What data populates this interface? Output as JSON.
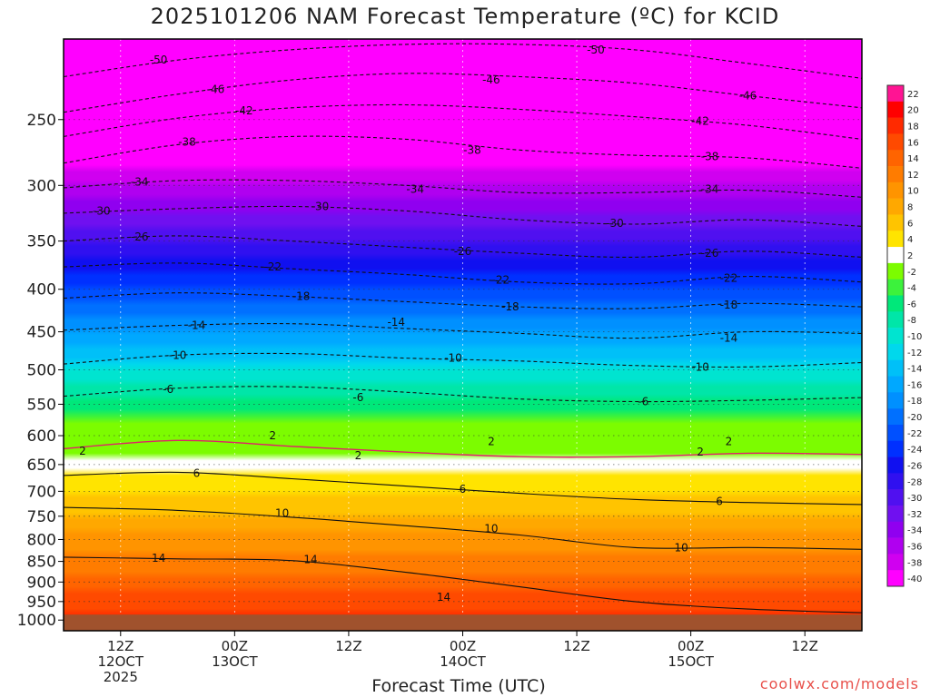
{
  "chart_data": {
    "type": "heatmap",
    "title": "2025101206 NAM Forecast Temperature (ºC) for KCID",
    "xlabel": "Forecast Time (UTC)",
    "ylabel": "",
    "credit": "coolwx.com/models",
    "x_ticks": [
      {
        "hours": 6,
        "line1": "12Z",
        "line2": "12OCT",
        "line3": "2025"
      },
      {
        "hours": 18,
        "line1": "00Z",
        "line2": "13OCT",
        "line3": ""
      },
      {
        "hours": 30,
        "line1": "12Z",
        "line2": "",
        "line3": ""
      },
      {
        "hours": 42,
        "line1": "00Z",
        "line2": "14OCT",
        "line3": ""
      },
      {
        "hours": 54,
        "line1": "12Z",
        "line2": "",
        "line3": ""
      },
      {
        "hours": 66,
        "line1": "00Z",
        "line2": "15OCT",
        "line3": ""
      },
      {
        "hours": 78,
        "line1": "12Z",
        "line2": "",
        "line3": ""
      }
    ],
    "xlim_hours": [
      0,
      84
    ],
    "y_ticks": [
      250,
      300,
      350,
      400,
      450,
      500,
      550,
      600,
      650,
      700,
      750,
      800,
      850,
      900,
      950,
      1000
    ],
    "y_tick_labels": [
      "250",
      "300",
      "350",
      "400",
      "450",
      "500",
      "550",
      "600",
      "650",
      "700",
      "750",
      "800",
      "850",
      "900",
      "950",
      "1000"
    ],
    "ylim_hpa": [
      200,
      1030
    ],
    "y_scale": "log",
    "y_inverted": true,
    "surface_pressure_hpa": 985,
    "surface_color": "#a0522d",
    "grid": true,
    "colorbar": {
      "placement": "right",
      "levels": [
        22,
        20,
        18,
        16,
        14,
        12,
        10,
        8,
        6,
        4,
        2,
        -2,
        -4,
        -6,
        -8,
        -10,
        -12,
        -14,
        -16,
        -18,
        -20,
        -22,
        -24,
        -26,
        -28,
        -30,
        -32,
        -34,
        -36,
        -38,
        -40
      ],
      "labels": [
        "22",
        "20",
        "18",
        "16",
        "14",
        "12",
        "10",
        "8",
        "6",
        "4",
        "2",
        "-2",
        "-4",
        "-6",
        "-8",
        "-10",
        "-12",
        "-14",
        "-16",
        "-18",
        "-20",
        "-22",
        "-24",
        "-26",
        "-28",
        "-30",
        "-32",
        "-34",
        "-36",
        "-38",
        "-40"
      ],
      "colors": [
        "#ff1493",
        "#ff0000",
        "#ff2a00",
        "#ff4a00",
        "#ff6400",
        "#ff7c00",
        "#ff9400",
        "#ffa800",
        "#ffc400",
        "#ffe400",
        "#ffffff",
        "#7cfc00",
        "#3cf23c",
        "#00e87a",
        "#00e6a8",
        "#00e4d0",
        "#00d8ec",
        "#00c0f8",
        "#00a8ff",
        "#0090ff",
        "#0070ff",
        "#0050ff",
        "#0030ff",
        "#1010f0",
        "#3010f0",
        "#5010f0",
        "#7010f0",
        "#9000f0",
        "#b000f0",
        "#d000f0",
        "#ff00ff"
      ]
    },
    "profile_levels_hpa": [
      200,
      250,
      300,
      350,
      400,
      450,
      500,
      550,
      600,
      650,
      700,
      750,
      800,
      850,
      900,
      950,
      1000
    ],
    "profile_temps_c": [
      -52,
      -44,
      -36,
      -28,
      -22,
      -16,
      -10,
      -5,
      0,
      3,
      6,
      8,
      11,
      13,
      15,
      17,
      19
    ],
    "contours": [
      {
        "level": -50,
        "label": "-50",
        "hours": [
          0,
          12,
          24,
          36,
          48,
          60,
          72,
          84
        ],
        "pressure": [
          222,
          212,
          206,
          203,
          203,
          206,
          214,
          223
        ]
      },
      {
        "level": -46,
        "label": "-46",
        "hours": [
          0,
          12,
          24,
          36,
          48,
          60,
          72,
          84
        ],
        "pressure": [
          245,
          233,
          224,
          220,
          222,
          226,
          234,
          242
        ]
      },
      {
        "level": -42,
        "label": "-42",
        "hours": [
          0,
          12,
          24,
          36,
          48,
          60,
          72,
          84
        ],
        "pressure": [
          262,
          249,
          242,
          240,
          243,
          248,
          254,
          264
        ]
      },
      {
        "level": -38,
        "label": "-38",
        "hours": [
          0,
          12,
          24,
          36,
          48,
          60,
          72,
          84
        ],
        "pressure": [
          282,
          268,
          262,
          264,
          272,
          276,
          278,
          286
        ]
      },
      {
        "level": -34,
        "label": "-34",
        "hours": [
          0,
          12,
          24,
          36,
          48,
          60,
          72,
          84
        ],
        "pressure": [
          302,
          296,
          296,
          300,
          306,
          306,
          304,
          310
        ]
      },
      {
        "level": -30,
        "label": "-30",
        "hours": [
          0,
          12,
          24,
          36,
          48,
          60,
          72,
          84
        ],
        "pressure": [
          324,
          320,
          318,
          322,
          330,
          334,
          330,
          336
        ]
      },
      {
        "level": -26,
        "label": "-26",
        "hours": [
          0,
          12,
          24,
          36,
          48,
          60,
          72,
          84
        ],
        "pressure": [
          350,
          345,
          350,
          356,
          362,
          366,
          360,
          366
        ]
      },
      {
        "level": -22,
        "label": "-22",
        "hours": [
          0,
          12,
          24,
          36,
          48,
          60,
          72,
          84
        ],
        "pressure": [
          376,
          372,
          378,
          384,
          392,
          394,
          386,
          392
        ]
      },
      {
        "level": -18,
        "label": "-18",
        "hours": [
          0,
          12,
          24,
          36,
          48,
          60,
          72,
          84
        ],
        "pressure": [
          410,
          404,
          408,
          414,
          420,
          422,
          416,
          420
        ]
      },
      {
        "level": -14,
        "label": "-14",
        "hours": [
          0,
          12,
          24,
          36,
          48,
          60,
          72,
          84
        ],
        "pressure": [
          448,
          442,
          440,
          446,
          452,
          458,
          450,
          452
        ]
      },
      {
        "level": -10,
        "label": "-10",
        "hours": [
          0,
          12,
          24,
          36,
          48,
          60,
          72,
          84
        ],
        "pressure": [
          492,
          480,
          478,
          484,
          488,
          494,
          496,
          490
        ]
      },
      {
        "level": -6,
        "label": "-6",
        "hours": [
          0,
          12,
          24,
          36,
          48,
          60,
          72,
          84
        ],
        "pressure": [
          538,
          526,
          524,
          532,
          542,
          546,
          544,
          540
        ]
      },
      {
        "level": 2,
        "label": "2",
        "hours": [
          0,
          12,
          24,
          36,
          48,
          60,
          72,
          84
        ],
        "pressure": [
          622,
          608,
          618,
          628,
          636,
          636,
          630,
          632
        ]
      },
      {
        "level": 6,
        "label": "6",
        "hours": [
          0,
          12,
          24,
          36,
          48,
          60,
          72,
          84
        ],
        "pressure": [
          670,
          664,
          676,
          690,
          704,
          716,
          722,
          726
        ]
      },
      {
        "level": 10,
        "label": "10",
        "hours": [
          0,
          12,
          24,
          36,
          48,
          60,
          72,
          84
        ],
        "pressure": [
          732,
          738,
          752,
          770,
          790,
          818,
          818,
          822
        ]
      },
      {
        "level": 14,
        "label": "14",
        "hours": [
          0,
          12,
          24,
          36,
          48,
          60,
          72,
          84
        ],
        "pressure": [
          840,
          844,
          848,
          876,
          912,
          950,
          970,
          980
        ]
      }
    ],
    "contour_labels": [
      {
        "level": -50,
        "label": "-50",
        "hours": 10,
        "pressure": 212
      },
      {
        "level": -50,
        "label": "-50",
        "hours": 56,
        "pressure": 206
      },
      {
        "level": -46,
        "label": "-46",
        "hours": 16,
        "pressure": 230
      },
      {
        "level": -46,
        "label": "-46",
        "hours": 45,
        "pressure": 224
      },
      {
        "level": -46,
        "label": "-46",
        "hours": 72,
        "pressure": 234
      },
      {
        "level": -42,
        "label": "-42",
        "hours": 19,
        "pressure": 244
      },
      {
        "level": -42,
        "label": "-42",
        "hours": 67,
        "pressure": 251
      },
      {
        "level": -38,
        "label": "-38",
        "hours": 13,
        "pressure": 266
      },
      {
        "level": -38,
        "label": "-38",
        "hours": 43,
        "pressure": 272
      },
      {
        "level": -38,
        "label": "-38",
        "hours": 68,
        "pressure": 277
      },
      {
        "level": -34,
        "label": "-34",
        "hours": 8,
        "pressure": 297
      },
      {
        "level": -34,
        "label": "-34",
        "hours": 37,
        "pressure": 303
      },
      {
        "level": -34,
        "label": "-34",
        "hours": 68,
        "pressure": 303
      },
      {
        "level": -30,
        "label": "-30",
        "hours": 4,
        "pressure": 322
      },
      {
        "level": -30,
        "label": "-30",
        "hours": 27,
        "pressure": 318
      },
      {
        "level": -30,
        "label": "-30",
        "hours": 58,
        "pressure": 333
      },
      {
        "level": -26,
        "label": "-26",
        "hours": 8,
        "pressure": 346
      },
      {
        "level": -26,
        "label": "-26",
        "hours": 42,
        "pressure": 360
      },
      {
        "level": -26,
        "label": "-26",
        "hours": 68,
        "pressure": 362
      },
      {
        "level": -22,
        "label": "-22",
        "hours": 22,
        "pressure": 376
      },
      {
        "level": -22,
        "label": "-22",
        "hours": 46,
        "pressure": 390
      },
      {
        "level": -22,
        "label": "-22",
        "hours": 70,
        "pressure": 388
      },
      {
        "level": -18,
        "label": "-18",
        "hours": 25,
        "pressure": 408
      },
      {
        "level": -18,
        "label": "-18",
        "hours": 47,
        "pressure": 420
      },
      {
        "level": -18,
        "label": "-18",
        "hours": 70,
        "pressure": 418
      },
      {
        "level": -14,
        "label": "-14",
        "hours": 14,
        "pressure": 442
      },
      {
        "level": -14,
        "label": "-14",
        "hours": 35,
        "pressure": 438
      },
      {
        "level": -14,
        "label": "-14",
        "hours": 70,
        "pressure": 458
      },
      {
        "level": -10,
        "label": "-10",
        "hours": 12,
        "pressure": 480
      },
      {
        "level": -10,
        "label": "-10",
        "hours": 41,
        "pressure": 484
      },
      {
        "level": -10,
        "label": "-10",
        "hours": 67,
        "pressure": 496
      },
      {
        "level": -6,
        "label": "-6",
        "hours": 11,
        "pressure": 528
      },
      {
        "level": -6,
        "label": "-6",
        "hours": 31,
        "pressure": 540
      },
      {
        "level": -6,
        "label": "-6",
        "hours": 61,
        "pressure": 546
      },
      {
        "level": 2,
        "label": "2",
        "hours": 2,
        "pressure": 626
      },
      {
        "level": 2,
        "label": "2",
        "hours": 22,
        "pressure": 600
      },
      {
        "level": 2,
        "label": "2",
        "hours": 31,
        "pressure": 634
      },
      {
        "level": 2,
        "label": "2",
        "hours": 45,
        "pressure": 610
      },
      {
        "level": 2,
        "label": "2",
        "hours": 67,
        "pressure": 628
      },
      {
        "level": 2,
        "label": "2",
        "hours": 70,
        "pressure": 610
      },
      {
        "level": 6,
        "label": "6",
        "hours": 14,
        "pressure": 666
      },
      {
        "level": 6,
        "label": "6",
        "hours": 42,
        "pressure": 696
      },
      {
        "level": 6,
        "label": "6",
        "hours": 69,
        "pressure": 720
      },
      {
        "level": 10,
        "label": "10",
        "hours": 23,
        "pressure": 744
      },
      {
        "level": 10,
        "label": "10",
        "hours": 45,
        "pressure": 776
      },
      {
        "level": 10,
        "label": "10",
        "hours": 65,
        "pressure": 818
      },
      {
        "level": 14,
        "label": "14",
        "hours": 10,
        "pressure": 842
      },
      {
        "level": 14,
        "label": "14",
        "hours": 26,
        "pressure": 846
      },
      {
        "level": 14,
        "label": "14",
        "hours": 40,
        "pressure": 938
      }
    ]
  }
}
